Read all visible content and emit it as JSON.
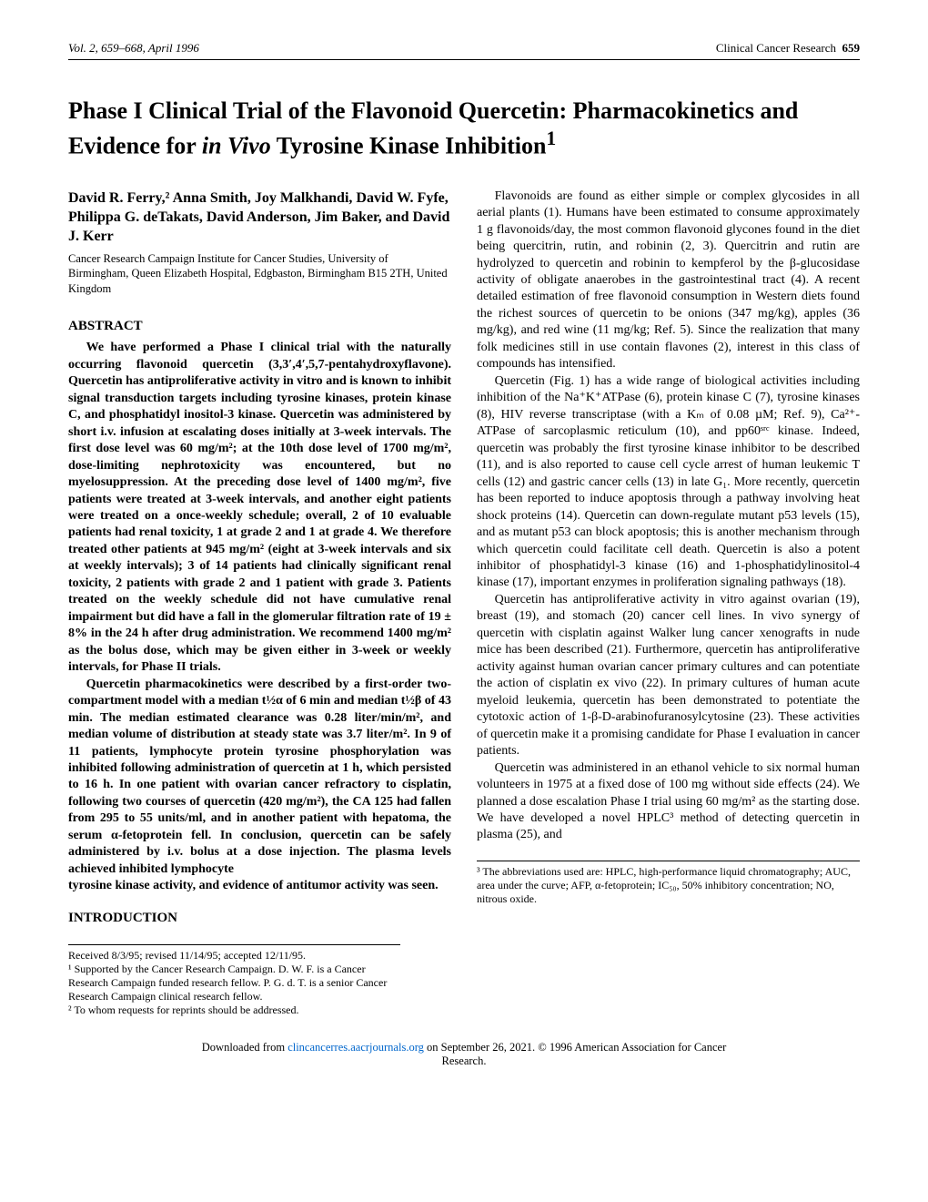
{
  "header": {
    "left": "Vol. 2, 659–668, April 1996",
    "right_journal": "Clinical Cancer Research",
    "right_page": "659"
  },
  "title_plain": "Phase I Clinical Trial of the Flavonoid Quercetin: Pharmacokinetics and Evidence for in Vivo Tyrosine Kinase Inhibition",
  "title_pre": "Phase I Clinical Trial of the Flavonoid Quercetin: Pharmacokinetics and Evidence for ",
  "title_ital": "in Vivo",
  "title_post": " Tyrosine Kinase Inhibition",
  "title_sup": "1",
  "authors": "David R. Ferry,² Anna Smith, Joy Malkhandi, David W. Fyfe, Philippa G. deTakats, David Anderson, Jim Baker, and David J. Kerr",
  "affiliation": "Cancer Research Campaign Institute for Cancer Studies, University of Birmingham, Queen Elizabeth Hospital, Edgbaston, Birmingham B15 2TH, United Kingdom",
  "abstract_head": "ABSTRACT",
  "abstract": {
    "p1": "We have performed a Phase I clinical trial with the naturally occurring flavonoid quercetin (3,3′,4′,5,7-pentahydroxyflavone). Quercetin has antiproliferative activity in vitro and is known to inhibit signal transduction targets including tyrosine kinases, protein kinase C, and phosphatidyl inositol-3 kinase. Quercetin was administered by short i.v. infusion at escalating doses initially at 3-week intervals. The first dose level was 60 mg/m²; at the 10th dose level of 1700 mg/m², dose-limiting nephrotoxicity was encountered, but no myelosuppression. At the preceding dose level of 1400 mg/m², five patients were treated at 3-week intervals, and another eight patients were treated on a once-weekly schedule; overall, 2 of 10 evaluable patients had renal toxicity, 1 at grade 2 and 1 at grade 4. We therefore treated other patients at 945 mg/m² (eight at 3-week intervals and six at weekly intervals); 3 of 14 patients had clinically significant renal toxicity, 2 patients with grade 2 and 1 patient with grade 3. Patients treated on the weekly schedule did not have cumulative renal impairment but did have a fall in the glomerular filtration rate of 19 ± 8% in the 24 h after drug administration. We recommend 1400 mg/m² as the bolus dose, which may be given either in 3-week or weekly intervals, for Phase II trials.",
    "p2": "Quercetin pharmacokinetics were described by a first-order two-compartment model with a median t½α of 6 min and median t½β of 43 min. The median estimated clearance was 0.28 liter/min/m², and median volume of distribution at steady state was 3.7 liter/m². In 9 of 11 patients, lymphocyte protein tyrosine phosphorylation was inhibited following administration of quercetin at 1 h, which persisted to 16 h. In one patient with ovarian cancer refractory to cisplatin, following two courses of quercetin (420 mg/m²), the CA 125 had fallen from 295 to 55 units/ml, and in another patient with hepatoma, the serum α-fetoprotein fell. In conclusion, quercetin can be safely administered by i.v. bolus at a dose injection. The plasma levels achieved inhibited lymphocyte"
  },
  "intro_lead": "tyrosine kinase activity, and evidence of antitumor activity was seen.",
  "intro_head": "INTRODUCTION",
  "intro": {
    "p1": "Flavonoids are found as either simple or complex glycosides in all aerial plants (1). Humans have been estimated to consume approximately 1 g flavonoids/day, the most common flavonoid glycones found in the diet being quercitrin, rutin, and robinin (2, 3). Quercitrin and rutin are hydrolyzed to quercetin and robinin to kempferol by the β-glucosidase activity of obligate anaerobes in the gastrointestinal tract (4). A recent detailed estimation of free flavonoid consumption in Western diets found the richest sources of quercetin to be onions (347 mg/kg), apples (36 mg/kg), and red wine (11 mg/kg; Ref. 5). Since the realization that many folk medicines still in use contain flavones (2), interest in this class of compounds has intensified.",
    "p2": "Quercetin (Fig. 1) has a wide range of biological activities including inhibition of the Na⁺K⁺ATPase (6), protein kinase C (7), tyrosine kinases (8), HIV reverse transcriptase (with a Kₘ of 0.08 µM; Ref. 9), Ca²⁺-ATPase of sarcoplasmic reticulum (10), and pp60ˢʳᶜ kinase. Indeed, quercetin was probably the first tyrosine kinase inhibitor to be described (11), and is also reported to cause cell cycle arrest of human leukemic T cells (12) and gastric cancer cells (13) in late G₁. More recently, quercetin has been reported to induce apoptosis through a pathway involving heat shock proteins (14). Quercetin can down-regulate mutant p53 levels (15), and as mutant p53 can block apoptosis; this is another mechanism through which quercetin could facilitate cell death. Quercetin is also a potent inhibitor of phosphatidyl-3 kinase (16) and 1-phosphatidylinositol-4 kinase (17), important enzymes in proliferation signaling pathways (18).",
    "p3": "Quercetin has antiproliferative activity in vitro against ovarian (19), breast (19), and stomach (20) cancer cell lines. In vivo synergy of quercetin with cisplatin against Walker lung cancer xenografts in nude mice has been described (21). Furthermore, quercetin has antiproliferative activity against human ovarian cancer primary cultures and can potentiate the action of cisplatin ex vivo (22). In primary cultures of human acute myeloid leukemia, quercetin has been demonstrated to potentiate the cytotoxic action of 1-β-D-arabinofuranosylcytosine (23). These activities of quercetin make it a promising candidate for Phase I evaluation in cancer patients.",
    "p4": "Quercetin was administered in an ethanol vehicle to six normal human volunteers in 1975 at a fixed dose of 100 mg without side effects (24). We planned a dose escalation Phase I trial using 60 mg/m² as the starting dose. We have developed a novel HPLC³ method of detecting quercetin in plasma (25), and"
  },
  "footnotes_left": {
    "received": "Received 8/3/95; revised 11/14/95; accepted 12/11/95.",
    "f1": "¹ Supported by the Cancer Research Campaign. D. W. F. is a Cancer Research Campaign funded research fellow. P. G. d. T. is a senior Cancer Research Campaign clinical research fellow.",
    "f2": "² To whom requests for reprints should be addressed."
  },
  "footnotes_right": {
    "f3": "³ The abbreviations used are: HPLC, high-performance liquid chromatography; AUC, area under the curve; AFP, α-fetoprotein; IC₅₀, 50% inhibitory concentration; NO, nitrous oxide."
  },
  "download": {
    "pre": "Downloaded from ",
    "link": "clincancerres.aacrjournals.org",
    "mid": " on September 26, 2021. © 1996 American Association for Cancer",
    "post": "Research."
  }
}
